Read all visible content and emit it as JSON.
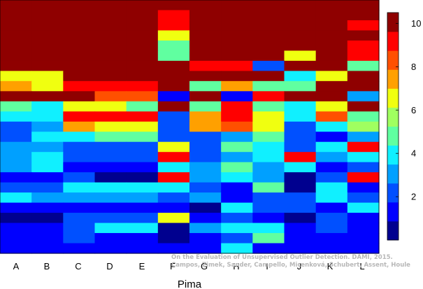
{
  "chart_data": {
    "type": "heatmap",
    "xlabel": "Pima",
    "categories": [
      "A",
      "B",
      "C",
      "D",
      "E",
      "F",
      "G",
      "H",
      "I",
      "J",
      "K",
      "L"
    ],
    "colorbar": {
      "range": [
        0,
        10.5
      ],
      "ticks": [
        "2",
        "4",
        "6",
        "8",
        "10"
      ],
      "colors": [
        "#00008f",
        "#0000ff",
        "#0050ff",
        "#00a0ff",
        "#10f0ff",
        "#60ffa0",
        "#a0ff60",
        "#f0ff10",
        "#ffa000",
        "#ff5000",
        "#ff0000",
        "#8f0000"
      ]
    },
    "rows_top_to_bottom": [
      [
        11,
        11,
        11,
        11,
        11,
        11,
        11,
        11,
        11,
        11,
        11,
        11
      ],
      [
        11,
        11,
        11,
        11,
        11,
        10,
        11,
        11,
        11,
        11,
        11,
        11
      ],
      [
        11,
        11,
        11,
        11,
        11,
        10,
        11,
        11,
        11,
        11,
        11,
        10
      ],
      [
        11,
        11,
        11,
        11,
        11,
        7,
        11,
        11,
        11,
        11,
        11,
        11
      ],
      [
        11,
        11,
        11,
        11,
        11,
        5,
        11,
        11,
        11,
        11,
        11,
        10
      ],
      [
        11,
        11,
        11,
        11,
        11,
        5,
        11,
        11,
        11,
        7,
        11,
        10
      ],
      [
        11,
        11,
        11,
        11,
        11,
        11,
        10,
        10,
        2,
        11,
        11,
        5
      ],
      [
        7,
        7,
        11,
        11,
        11,
        11,
        11,
        11,
        11,
        4,
        7,
        11
      ],
      [
        8,
        7,
        10,
        10,
        10,
        11,
        5,
        8,
        5,
        5,
        11,
        11
      ],
      [
        11,
        11,
        11,
        9,
        9,
        1,
        11,
        1,
        10,
        11,
        11,
        3
      ],
      [
        5,
        4,
        7,
        7,
        5,
        11,
        5,
        10,
        5,
        4,
        7,
        11
      ],
      [
        4,
        4,
        10,
        10,
        10,
        2,
        8,
        10,
        7,
        4,
        9,
        5
      ],
      [
        2,
        3,
        8,
        7,
        7,
        2,
        8,
        9,
        7,
        2,
        4,
        6
      ],
      [
        2,
        4,
        4,
        5,
        5,
        2,
        2,
        3,
        5,
        2,
        1,
        3
      ],
      [
        3,
        3,
        2,
        2,
        2,
        7,
        2,
        5,
        4,
        2,
        4,
        10
      ],
      [
        3,
        4,
        2,
        2,
        2,
        10,
        2,
        3,
        4,
        10,
        3,
        4
      ],
      [
        3,
        4,
        1,
        1,
        1,
        4,
        3,
        5,
        3,
        4,
        1,
        2
      ],
      [
        1,
        1,
        2,
        0,
        0,
        10,
        3,
        4,
        3,
        0,
        2,
        10
      ],
      [
        2,
        2,
        4,
        4,
        4,
        4,
        2,
        1,
        5,
        0,
        4,
        1
      ],
      [
        4,
        3,
        3,
        3,
        3,
        2,
        3,
        1,
        2,
        2,
        4,
        2
      ],
      [
        1,
        1,
        1,
        1,
        1,
        1,
        0,
        4,
        2,
        2,
        1,
        4
      ],
      [
        0,
        0,
        2,
        2,
        2,
        7,
        1,
        2,
        1,
        0,
        2,
        1
      ],
      [
        1,
        1,
        2,
        4,
        4,
        0,
        3,
        4,
        4,
        1,
        2,
        1
      ],
      [
        1,
        1,
        2,
        1,
        1,
        0,
        1,
        2,
        5,
        1,
        1,
        1
      ],
      [
        1,
        1,
        1,
        1,
        1,
        1,
        1,
        4,
        1,
        1,
        1,
        1
      ]
    ],
    "annotation_lines": [
      "On the Evaluation of Unsupervised Outlier Detection. DAMI, 2015.",
      "Campos, Zimek, Sander, Campello, Micenková, Schubert, Assent, Houle"
    ]
  }
}
